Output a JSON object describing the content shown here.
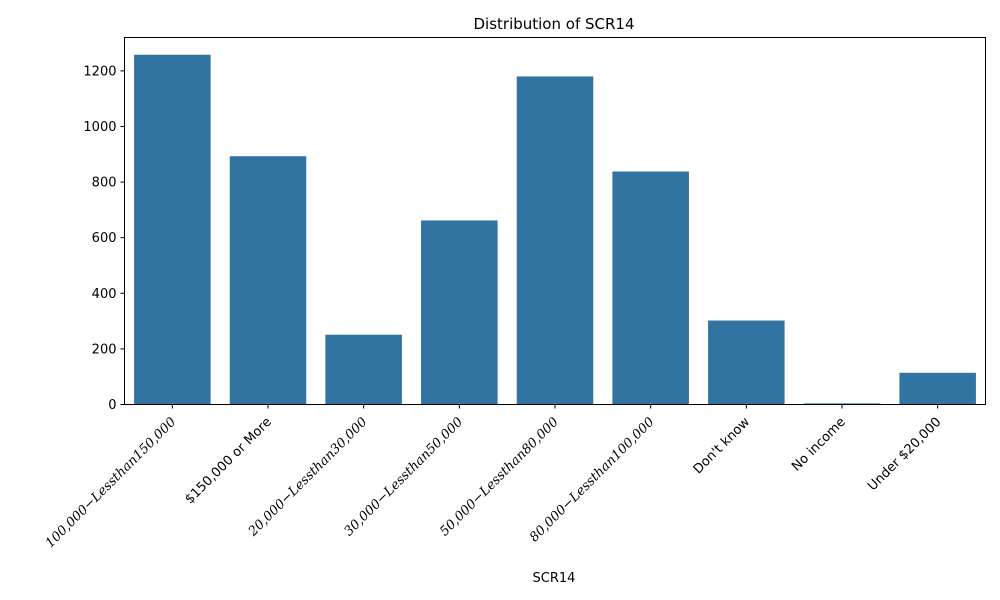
{
  "chart_data": {
    "type": "bar",
    "title": "Distribution of SCR14",
    "xlabel": "SCR14",
    "ylabel": "",
    "ylim": [
      0,
      1320
    ],
    "yticks": [
      0,
      200,
      400,
      600,
      800,
      1000,
      1200
    ],
    "bar_color": "#3274a1",
    "grid": false,
    "categories": [
      "100,000−Lessthan150,000",
      "$150,000 or More",
      "20,000−Lessthan30,000",
      "30,000−Lessthan50,000",
      "50,000−Lessthan80,000",
      "80,000−Lessthan100,000",
      "Don't know",
      "No income",
      "Under $20,000"
    ],
    "values": [
      1258,
      893,
      251,
      662,
      1180,
      838,
      302,
      4,
      114
    ]
  }
}
